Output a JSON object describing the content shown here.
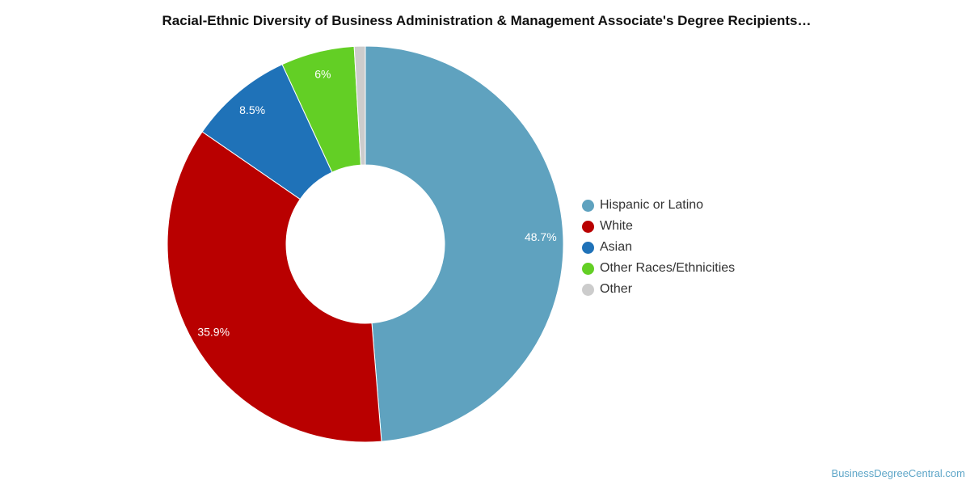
{
  "chart_data": {
    "type": "pie",
    "donut": true,
    "title": "Racial-Ethnic Diversity of Business Administration & Management Associate's Degree Recipients…",
    "slices": [
      {
        "label": "Hispanic or Latino",
        "value": 48.7,
        "value_label": "48.7%",
        "color": "#5fa2bf"
      },
      {
        "label": "White",
        "value": 35.9,
        "value_label": "35.9%",
        "color": "#b90000"
      },
      {
        "label": "Asian",
        "value": 8.5,
        "value_label": "8.5%",
        "color": "#1f72b8"
      },
      {
        "label": "Other Races/Ethnicities",
        "value": 6.0,
        "value_label": "6%",
        "color": "#63cf25"
      },
      {
        "label": "Other",
        "value": 0.9,
        "value_label": "",
        "color": "#cccccc"
      }
    ],
    "legend_position": "right"
  },
  "watermark": "BusinessDegreeCentral.com"
}
